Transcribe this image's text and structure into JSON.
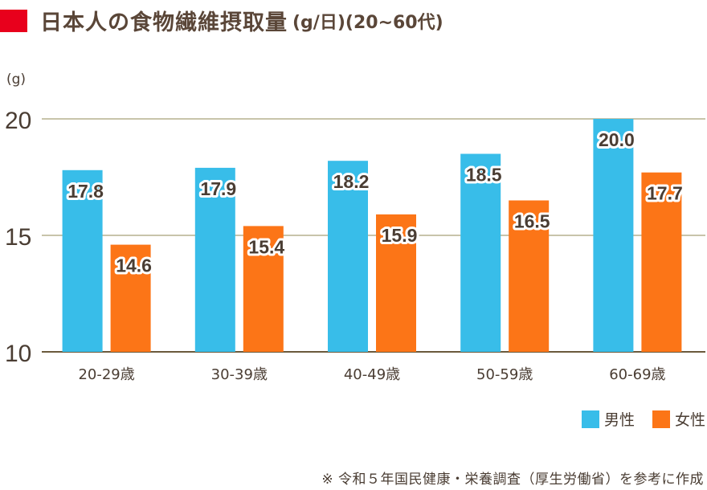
{
  "title": "日本人の食物繊維摂取量",
  "title_unit": "(g/日)(20~60代)",
  "source_note": "※ 令和５年国民健康・栄養調査（厚生労働省）を参考に作成",
  "chart_data": {
    "type": "bar",
    "ylabel": "(g)",
    "ylim": [
      10,
      20
    ],
    "yticks": [
      10,
      15,
      20
    ],
    "categories": [
      "20-29歳",
      "30-39歳",
      "40-49歳",
      "50-59歳",
      "60-69歳"
    ],
    "series": [
      {
        "name": "男性",
        "color": "#38bde9",
        "values": [
          17.8,
          17.9,
          18.2,
          18.5,
          20.0
        ],
        "labels": [
          "17.8",
          "17.9",
          "18.2",
          "18.5",
          "20.0"
        ]
      },
      {
        "name": "女性",
        "color": "#fc7517",
        "values": [
          14.6,
          15.4,
          15.9,
          16.5,
          17.7
        ],
        "labels": [
          "14.6",
          "15.4",
          "15.9",
          "16.5",
          "17.7"
        ]
      }
    ],
    "grid": true,
    "legend": "bottom-right"
  }
}
